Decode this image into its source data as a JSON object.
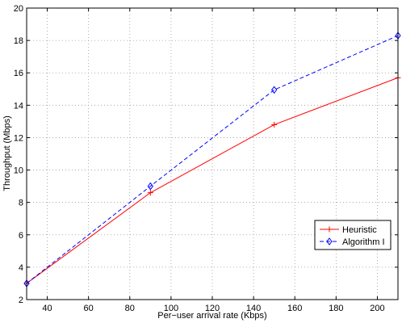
{
  "chart_data": {
    "type": "line",
    "xlabel": "Per−user arrival rate (Kbps)",
    "ylabel": "Throughput (Mbps)",
    "xlim": [
      30,
      210
    ],
    "ylim": [
      2,
      20
    ],
    "xticks": [
      40,
      60,
      80,
      100,
      120,
      140,
      160,
      180,
      200
    ],
    "yticks": [
      2,
      4,
      6,
      8,
      10,
      12,
      14,
      16,
      18,
      20
    ],
    "grid": true,
    "legend_position": "lower-right",
    "series": [
      {
        "name": "Heuristic",
        "x": [
          30,
          90,
          150,
          210
        ],
        "values": [
          3.0,
          8.6,
          12.8,
          15.7
        ],
        "color": "#ff0000",
        "line_style": "solid",
        "marker": "plus"
      },
      {
        "name": "Algorithm I",
        "x": [
          30,
          90,
          150,
          210
        ],
        "values": [
          3.0,
          9.0,
          14.95,
          18.3
        ],
        "color": "#0000ff",
        "line_style": "dashed",
        "marker": "diamond"
      }
    ]
  }
}
